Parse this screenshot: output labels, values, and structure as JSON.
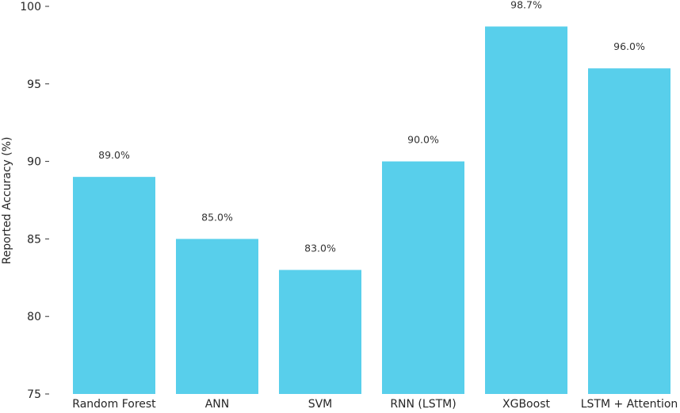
{
  "chart_data": {
    "type": "bar",
    "title": "",
    "xlabel": "",
    "ylabel": "Reported Accuracy (%)",
    "categories": [
      "Random Forest",
      "ANN",
      "SVM",
      "RNN (LSTM)",
      "XGBoost",
      "LSTM + Attention"
    ],
    "values": [
      89.0,
      85.0,
      83.0,
      90.0,
      98.7,
      96.0
    ],
    "data_labels": [
      "89.0%",
      "85.0%",
      "83.0%",
      "90.0%",
      "98.7%",
      "96.0%"
    ],
    "ylim": [
      75,
      100
    ],
    "yticks": [
      75,
      80,
      85,
      90,
      95,
      100
    ],
    "bar_color": "#58cfeb",
    "grid": false,
    "legend": "none"
  }
}
